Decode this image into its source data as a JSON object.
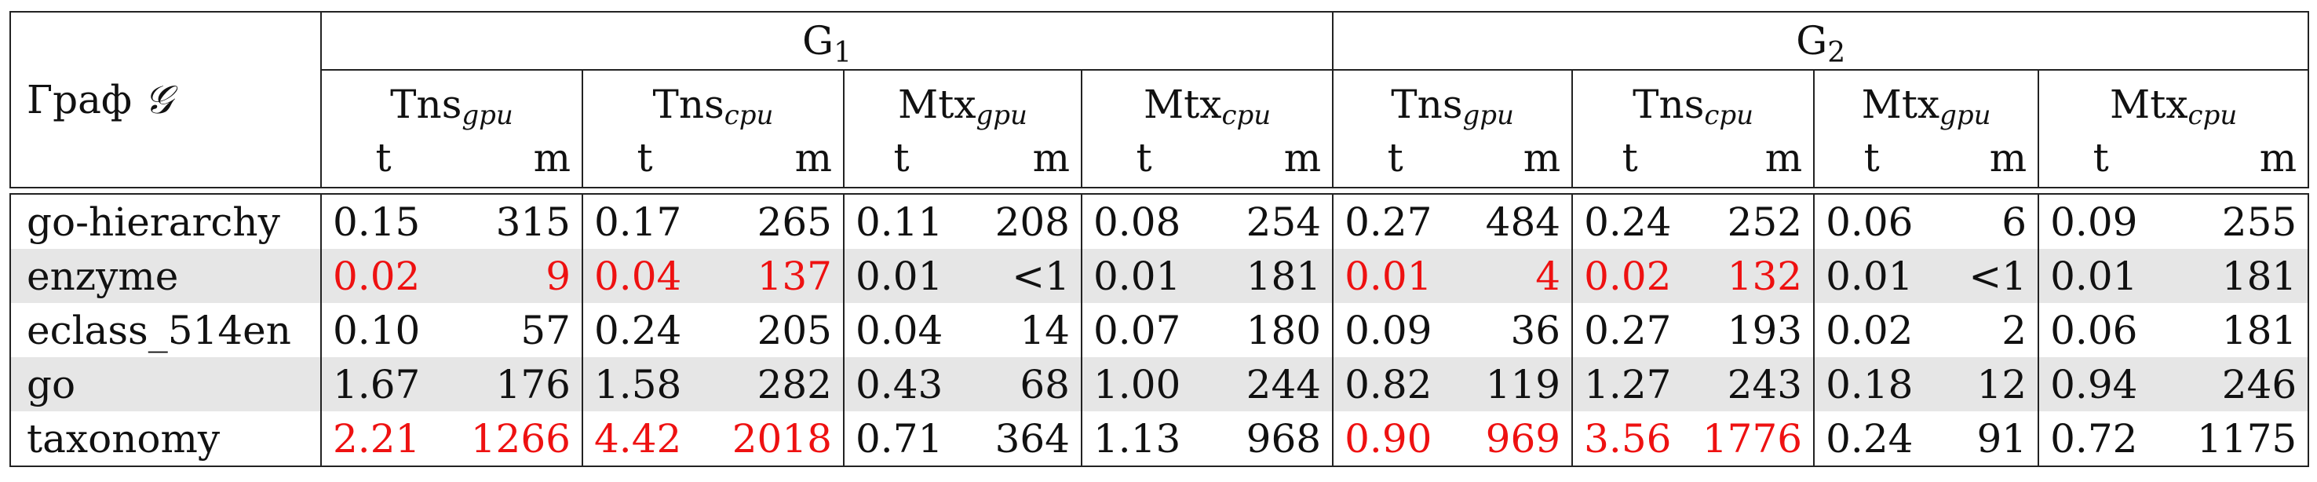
{
  "table": {
    "corner_label": "Граф",
    "corner_symbol": "𝒢",
    "groups": [
      {
        "main": "G",
        "sub": "1"
      },
      {
        "main": "G",
        "sub": "2"
      }
    ],
    "methods": [
      {
        "main": "Tns",
        "sub": "gpu"
      },
      {
        "main": "Tns",
        "sub": "cpu"
      },
      {
        "main": "Mtx",
        "sub": "gpu"
      },
      {
        "main": "Mtx",
        "sub": "cpu"
      }
    ],
    "col_t": "t",
    "col_m": "m",
    "highlight_color": "#ee1111",
    "shade_color": "#e6e6e6",
    "rows": [
      {
        "graph": "go-hierarchy",
        "shaded": false,
        "g1": [
          [
            "0.15",
            "315"
          ],
          [
            "0.17",
            "265"
          ],
          [
            "0.11",
            "208"
          ],
          [
            "0.08",
            "254"
          ]
        ],
        "g2": [
          [
            "0.27",
            "484"
          ],
          [
            "0.24",
            "252"
          ],
          [
            "0.06",
            "6"
          ],
          [
            "0.09",
            "255"
          ]
        ],
        "red_g1": [
          false,
          false,
          false,
          false
        ],
        "red_g2": [
          false,
          false,
          false,
          false
        ]
      },
      {
        "graph": "enzyme",
        "shaded": true,
        "g1": [
          [
            "0.02",
            "9"
          ],
          [
            "0.04",
            "137"
          ],
          [
            "0.01",
            "<1"
          ],
          [
            "0.01",
            "181"
          ]
        ],
        "g2": [
          [
            "0.01",
            "4"
          ],
          [
            "0.02",
            "132"
          ],
          [
            "0.01",
            "<1"
          ],
          [
            "0.01",
            "181"
          ]
        ],
        "red_g1": [
          true,
          true,
          false,
          false
        ],
        "red_g2": [
          true,
          true,
          false,
          false
        ]
      },
      {
        "graph": "eclass_514en",
        "shaded": false,
        "g1": [
          [
            "0.10",
            "57"
          ],
          [
            "0.24",
            "205"
          ],
          [
            "0.04",
            "14"
          ],
          [
            "0.07",
            "180"
          ]
        ],
        "g2": [
          [
            "0.09",
            "36"
          ],
          [
            "0.27",
            "193"
          ],
          [
            "0.02",
            "2"
          ],
          [
            "0.06",
            "181"
          ]
        ],
        "red_g1": [
          false,
          false,
          false,
          false
        ],
        "red_g2": [
          false,
          false,
          false,
          false
        ]
      },
      {
        "graph": "go",
        "shaded": true,
        "g1": [
          [
            "1.67",
            "176"
          ],
          [
            "1.58",
            "282"
          ],
          [
            "0.43",
            "68"
          ],
          [
            "1.00",
            "244"
          ]
        ],
        "g2": [
          [
            "0.82",
            "119"
          ],
          [
            "1.27",
            "243"
          ],
          [
            "0.18",
            "12"
          ],
          [
            "0.94",
            "246"
          ]
        ],
        "red_g1": [
          false,
          false,
          false,
          false
        ],
        "red_g2": [
          false,
          false,
          false,
          false
        ]
      },
      {
        "graph": "taxonomy",
        "shaded": false,
        "g1": [
          [
            "2.21",
            "1266"
          ],
          [
            "4.42",
            "2018"
          ],
          [
            "0.71",
            "364"
          ],
          [
            "1.13",
            "968"
          ]
        ],
        "g2": [
          [
            "0.90",
            "969"
          ],
          [
            "3.56",
            "1776"
          ],
          [
            "0.24",
            "91"
          ],
          [
            "0.72",
            "1175"
          ]
        ],
        "red_g1": [
          true,
          true,
          false,
          false
        ],
        "red_g2": [
          true,
          true,
          false,
          false
        ]
      }
    ]
  }
}
